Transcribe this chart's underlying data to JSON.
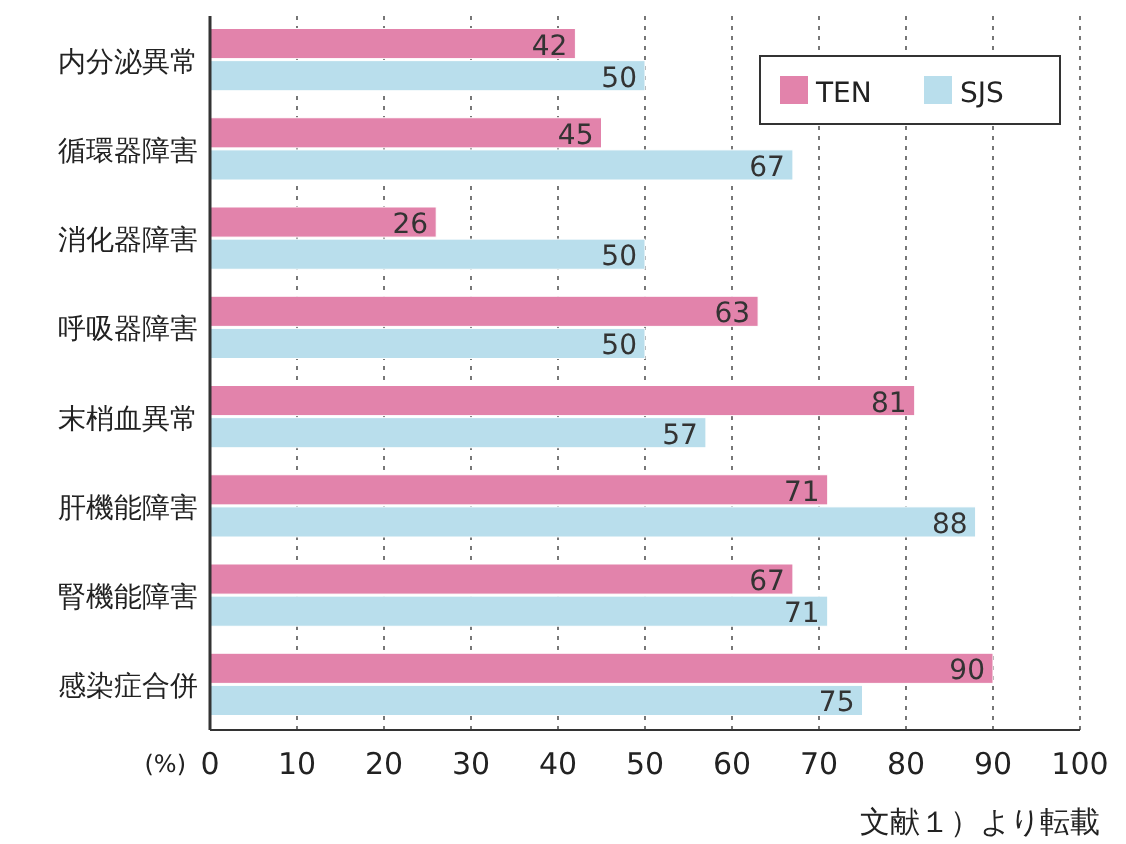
{
  "chart_data": {
    "type": "bar",
    "orientation": "horizontal",
    "categories": [
      "内分泌異常",
      "循環器障害",
      "消化器障害",
      "呼吸器障害",
      "末梢血異常",
      "肝機能障害",
      "腎機能障害",
      "感染症合併"
    ],
    "series": [
      {
        "name": "TEN",
        "color": "#e283ab",
        "values": [
          42,
          45,
          26,
          63,
          81,
          71,
          67,
          90
        ]
      },
      {
        "name": "SJS",
        "color": "#b9deec",
        "values": [
          50,
          67,
          50,
          50,
          57,
          88,
          71,
          75
        ]
      }
    ],
    "xlim": [
      0,
      100
    ],
    "xticks": [
      0,
      10,
      20,
      30,
      40,
      50,
      60,
      70,
      80,
      90,
      100
    ],
    "xlabel": "(%)",
    "grid": "x",
    "legend": "top right",
    "data_labels": true,
    "annotations": [
      "文献１）より転載"
    ]
  }
}
